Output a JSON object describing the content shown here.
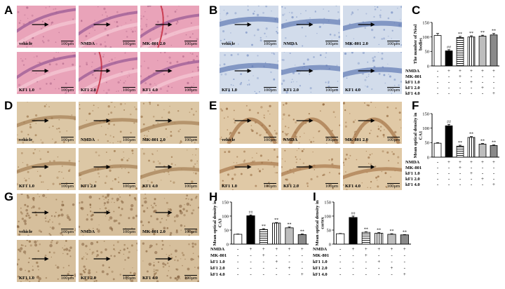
{
  "figure": {
    "letters": [
      "A",
      "B",
      "C",
      "D",
      "E",
      "F",
      "G",
      "H",
      "I"
    ],
    "scale_text": "100μm"
  },
  "panels": {
    "A": {
      "stain": "he",
      "tiles": [
        "vehicle",
        "NMDA",
        "MK-801 2.0",
        "KF1 1.0",
        "KF1 2.0",
        "KF1 4.0"
      ]
    },
    "B": {
      "stain": "nissl",
      "tiles": [
        "vehicle",
        "NMDA",
        "MK-801 2.0",
        "KF1 1.0",
        "KF1 2.0",
        "KF1 4.0"
      ]
    },
    "D": {
      "stain": "ihc",
      "tiles": [
        "vehicle",
        "NMDA",
        "MK-801 2.0",
        "KF1 1.0",
        "KF1 2.0",
        "KF1 4.0"
      ]
    },
    "E": {
      "stain": "ihc2",
      "tiles": [
        "vehicle",
        "NMDA",
        "MK-801 2.0",
        "KF1 1.0",
        "KF1 2.0",
        "KF1 4.0"
      ]
    },
    "G": {
      "stain": "cortex",
      "tiles": [
        "vehicle",
        "NMDA",
        "MK-801 2.0",
        "KF1 1.0",
        "KF1 2.0",
        "KF1 4.0"
      ]
    }
  },
  "chart_data": [
    {
      "panel": "C",
      "type": "bar",
      "ylabel": "The number of Nissl bodies",
      "ylim": [
        0,
        150
      ],
      "yticks": [
        0,
        50,
        100,
        150
      ],
      "categories": [
        "vehicle",
        "NMDA",
        "MK-801",
        "kF1 1.0",
        "kF1 2.0",
        "kF1 4.0"
      ],
      "values": [
        105,
        52,
        98,
        100,
        103,
        107
      ],
      "errors": [
        7,
        4,
        4,
        4,
        3,
        5
      ],
      "annotations": [
        "",
        "##",
        "**",
        "**",
        "**",
        "**"
      ],
      "group_rows": [
        "NMDA",
        "MK-801",
        "kF1 1.0",
        "kF1 2.0",
        "kF1 4.0"
      ],
      "group_matrix": [
        [
          "-",
          "+",
          "+",
          "+",
          "+",
          "+"
        ],
        [
          "-",
          "-",
          "+",
          "-",
          "-",
          "-"
        ],
        [
          "-",
          "-",
          "-",
          "+",
          "-",
          "-"
        ],
        [
          "-",
          "-",
          "-",
          "-",
          "+",
          "-"
        ],
        [
          "-",
          "-",
          "-",
          "-",
          "-",
          "+"
        ]
      ]
    },
    {
      "panel": "F",
      "type": "bar",
      "ylabel": "Mean optical density in CA1",
      "ylim": [
        0,
        150
      ],
      "yticks": [
        0,
        50,
        100,
        150
      ],
      "categories": [
        "vehicle",
        "NMDA",
        "MK-801",
        "kF1 1.0",
        "kF1 2.0",
        "kF1 4.0"
      ],
      "values": [
        48,
        108,
        38,
        68,
        45,
        40
      ],
      "errors": [
        2,
        5,
        3,
        3,
        2,
        2
      ],
      "annotations": [
        "",
        "##",
        "**",
        "**",
        "**",
        "**"
      ],
      "group_rows": [
        "NMDA",
        "MK-801",
        "kF1 1.0",
        "kF1 2.0",
        "kF1 4.0"
      ],
      "group_matrix": [
        [
          "-",
          "+",
          "+",
          "+",
          "+",
          "+"
        ],
        [
          "-",
          "-",
          "+",
          "-",
          "-",
          "-"
        ],
        [
          "-",
          "-",
          "-",
          "+",
          "-",
          "-"
        ],
        [
          "-",
          "-",
          "-",
          "-",
          "+",
          "-"
        ],
        [
          "-",
          "-",
          "-",
          "-",
          "-",
          "+"
        ]
      ]
    },
    {
      "panel": "H",
      "type": "bar",
      "ylabel": "Mean optical density in CA3",
      "ylim": [
        0,
        150
      ],
      "yticks": [
        0,
        50,
        100,
        150
      ],
      "categories": [
        "vehicle",
        "NMDA",
        "MK-801",
        "kF1 1.0",
        "kF1 2.0",
        "kF1 4.0"
      ],
      "values": [
        35,
        101,
        52,
        75,
        58,
        34
      ],
      "errors": [
        1,
        3,
        3,
        2,
        3,
        2
      ],
      "annotations": [
        "",
        "##",
        "**",
        "**",
        "**",
        "**"
      ],
      "group_rows": [
        "NMDA",
        "MK-801",
        "kF1 1.0",
        "kF1 2.0",
        "kF1 4.0"
      ],
      "group_matrix": [
        [
          "-",
          "+",
          "+",
          "+",
          "+",
          "+"
        ],
        [
          "-",
          "-",
          "+",
          "-",
          "-",
          "-"
        ],
        [
          "-",
          "-",
          "-",
          "+",
          "-",
          "-"
        ],
        [
          "-",
          "-",
          "-",
          "-",
          "+",
          "-"
        ],
        [
          "-",
          "-",
          "-",
          "-",
          "-",
          "+"
        ]
      ]
    },
    {
      "panel": "I",
      "type": "bar",
      "ylabel": "Mean optical density in cortex",
      "ylim": [
        0,
        150
      ],
      "yticks": [
        0,
        50,
        100,
        150
      ],
      "categories": [
        "vehicle",
        "NMDA",
        "MK-801",
        "kF1 1.0",
        "kF1 2.0",
        "kF1 4.0"
      ],
      "values": [
        37,
        95,
        42,
        39,
        35,
        33
      ],
      "errors": [
        1,
        5,
        2,
        2,
        2,
        1
      ],
      "annotations": [
        "",
        "##",
        "**",
        "**",
        "**",
        "**"
      ],
      "group_rows": [
        "NMDA",
        "MK-801",
        "kF1 1.0",
        "kF1 2.0",
        "kF1 4.0"
      ],
      "group_matrix": [
        [
          "-",
          "+",
          "+",
          "+",
          "+",
          "+"
        ],
        [
          "-",
          "-",
          "+",
          "-",
          "-",
          "-"
        ],
        [
          "-",
          "-",
          "-",
          "+",
          "-",
          "-"
        ],
        [
          "-",
          "-",
          "-",
          "-",
          "+",
          "-"
        ],
        [
          "-",
          "-",
          "-",
          "-",
          "-",
          "+"
        ]
      ]
    }
  ],
  "bar_fills": [
    "white",
    "black",
    "hlines",
    "vlines",
    "lightgray",
    "darkgray"
  ],
  "colors": {
    "he_bg": "#e9a3b9",
    "he_band": "#9a5b96",
    "nissl_bg": "#d2dceb",
    "nissl_band": "#5f79b3",
    "ihc_bg": "#dcc7a5",
    "ihc_band": "#a47f54"
  }
}
